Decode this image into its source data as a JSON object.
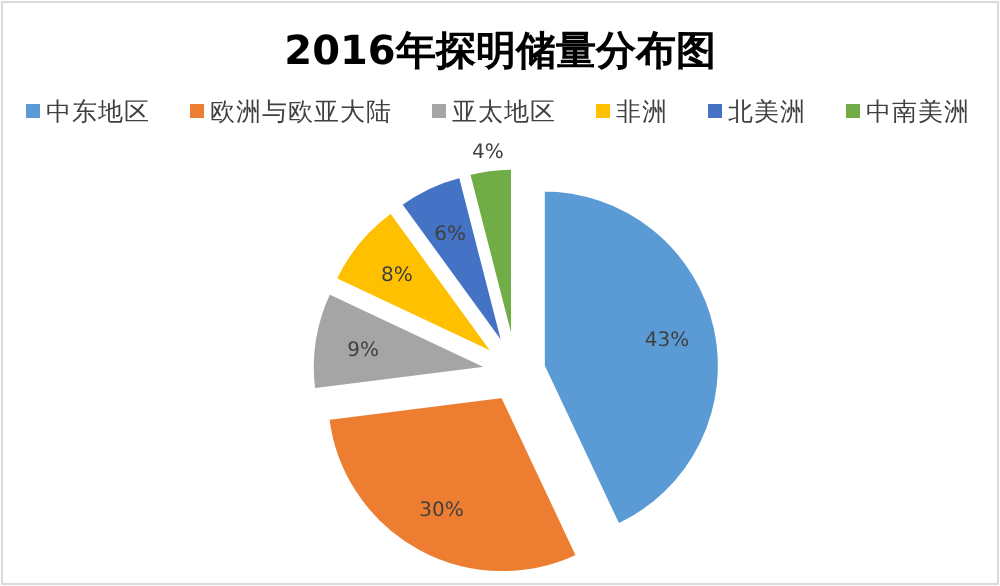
{
  "chart_data": {
    "type": "pie",
    "title": "2016年探明储量分布图",
    "categories": [
      "中东地区",
      "欧洲与欧亚大陆",
      "亚太地区",
      "非洲",
      "北美洲",
      "中南美洲"
    ],
    "values": [
      43,
      30,
      9,
      8,
      6,
      4
    ],
    "colors": [
      "#5b9bd5",
      "#ed7d31",
      "#a5a5a5",
      "#ffc000",
      "#4472c4",
      "#70ad47"
    ],
    "value_labels": [
      "43%",
      "30%",
      "9%",
      "8%",
      "6%",
      "4%"
    ],
    "legend": "top"
  }
}
